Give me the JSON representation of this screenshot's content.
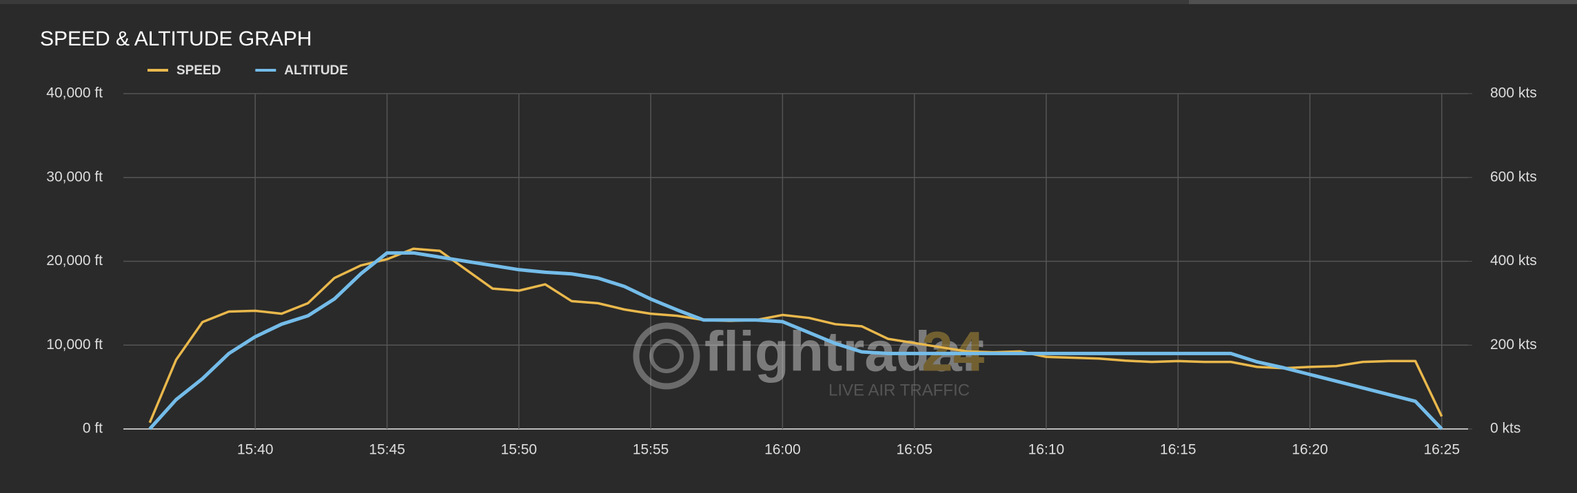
{
  "chart_data": {
    "type": "line",
    "title": "SPEED & ALTITUDE GRAPH",
    "annotations": [
      "flightradar",
      "24",
      "LIVE AIR TRAFFIC"
    ],
    "x": [
      "15:36",
      "15:37",
      "15:38",
      "15:39",
      "15:40",
      "15:41",
      "15:42",
      "15:43",
      "15:44",
      "15:45",
      "15:46",
      "15:47",
      "15:48",
      "15:49",
      "15:50",
      "15:51",
      "15:52",
      "15:53",
      "15:54",
      "15:55",
      "15:56",
      "15:57",
      "15:58",
      "15:59",
      "16:00",
      "16:01",
      "16:02",
      "16:03",
      "16:04",
      "16:05",
      "16:06",
      "16:07",
      "16:08",
      "16:09",
      "16:10",
      "16:11",
      "16:12",
      "16:13",
      "16:14",
      "16:15",
      "16:16",
      "16:17",
      "16:18",
      "16:19",
      "16:20",
      "16:21",
      "16:22",
      "16:23",
      "16:24",
      "16:25"
    ],
    "xlim": [
      "15:35",
      "16:26"
    ],
    "xticks": [
      "15:40",
      "15:45",
      "15:50",
      "15:55",
      "16:00",
      "16:05",
      "16:10",
      "16:15",
      "16:20",
      "16:25"
    ],
    "ylim": [
      0,
      40000
    ],
    "yticks": [
      {
        "value": 0,
        "label": "0 ft"
      },
      {
        "value": 10000,
        "label": "10,000 ft"
      },
      {
        "value": 20000,
        "label": "20,000 ft"
      },
      {
        "value": 30000,
        "label": "30,000 ft"
      },
      {
        "value": 40000,
        "label": "40,000 ft"
      }
    ],
    "y2lim": [
      0,
      800
    ],
    "y2ticks": [
      {
        "value": 0,
        "label": "0 kts"
      },
      {
        "value": 200,
        "label": "200 kts"
      },
      {
        "value": 400,
        "label": "400 kts"
      },
      {
        "value": 600,
        "label": "600 kts"
      },
      {
        "value": 800,
        "label": "800 kts"
      }
    ],
    "grid": true,
    "series": [
      {
        "name": "SPEED",
        "color": "#e9b84c",
        "axis": "y2",
        "values": [
          15,
          165,
          255,
          280,
          282,
          275,
          300,
          360,
          390,
          405,
          430,
          425,
          380,
          335,
          330,
          345,
          305,
          300,
          285,
          275,
          270,
          260,
          258,
          260,
          272,
          265,
          250,
          245,
          215,
          205,
          195,
          185,
          183,
          185,
          172,
          170,
          168,
          163,
          160,
          162,
          160,
          160,
          148,
          145,
          148,
          150,
          160,
          162,
          162,
          30
        ]
      },
      {
        "name": "ALTITUDE",
        "color": "#74bce9",
        "values": [
          0,
          3500,
          6000,
          9000,
          11000,
          12500,
          13500,
          15500,
          18500,
          21000,
          21000,
          20500,
          20000,
          19500,
          19000,
          18700,
          18500,
          18000,
          17000,
          15500,
          14200,
          13000,
          13000,
          13000,
          12800,
          11500,
          10200,
          9200,
          9000,
          9000,
          9000,
          9000,
          9000,
          9000,
          9000,
          9000,
          9000,
          9000,
          9000,
          9000,
          9000,
          9000,
          8000,
          7300,
          6500,
          5700,
          4900,
          4100,
          3300,
          0
        ]
      }
    ]
  }
}
